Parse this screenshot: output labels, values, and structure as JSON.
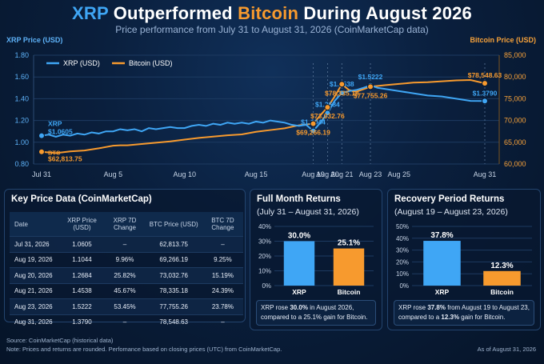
{
  "title": {
    "part1": "XRP",
    "part2": "Outperformed",
    "part3": "Bitcoin",
    "part4": "During August 2026"
  },
  "subtitle": "Price performance from July 31 to August 31, 2026 (CoinMarketCap data)",
  "colors": {
    "xrp": "#3fa6f5",
    "btc": "#f79a2e",
    "background": "#081a33"
  },
  "chart_data": [
    {
      "type": "line",
      "ylabel": "XRP Price (USD)",
      "y2label": "Bitcoin Price (USD)",
      "ylim": [
        0.8,
        1.8
      ],
      "y2lim": [
        60000,
        85000
      ],
      "yticks": [
        "0.80",
        "1.00",
        "1.20",
        "1.40",
        "1.60",
        "1.80"
      ],
      "y2ticks": [
        "60,000",
        "65,000",
        "70,000",
        "75,000",
        "80,000",
        "85,000"
      ],
      "x_ticks": [
        {
          "day": 0,
          "label": "Jul 31"
        },
        {
          "day": 5,
          "label": "Aug 5"
        },
        {
          "day": 10,
          "label": "Aug 10"
        },
        {
          "day": 15,
          "label": "Aug 15"
        },
        {
          "day": 19,
          "label": "Aug 19"
        },
        {
          "day": 20,
          "label": "Aug 20"
        },
        {
          "day": 21,
          "label": "Aug 21"
        },
        {
          "day": 23,
          "label": "Aug 23"
        },
        {
          "day": 25,
          "label": "Aug 25"
        },
        {
          "day": 31,
          "label": "Aug 31"
        }
      ],
      "legend": "top-left",
      "series": [
        {
          "name": "XRP (USD)",
          "axis": "left",
          "points": [
            [
              0,
              1.0605
            ],
            [
              0.5,
              1.07
            ],
            [
              1,
              1.05
            ],
            [
              1.5,
              1.07
            ],
            [
              2,
              1.06
            ],
            [
              2.5,
              1.08
            ],
            [
              3,
              1.07
            ],
            [
              3.5,
              1.09
            ],
            [
              4,
              1.08
            ],
            [
              4.5,
              1.1
            ],
            [
              5,
              1.1
            ],
            [
              5.5,
              1.12
            ],
            [
              6,
              1.11
            ],
            [
              6.5,
              1.12
            ],
            [
              7,
              1.1
            ],
            [
              7.5,
              1.13
            ],
            [
              8,
              1.12
            ],
            [
              8.5,
              1.13
            ],
            [
              9,
              1.14
            ],
            [
              9.5,
              1.13
            ],
            [
              10,
              1.13
            ],
            [
              10.5,
              1.15
            ],
            [
              11,
              1.16
            ],
            [
              11.5,
              1.15
            ],
            [
              12,
              1.17
            ],
            [
              12.5,
              1.16
            ],
            [
              13,
              1.18
            ],
            [
              13.5,
              1.17
            ],
            [
              14,
              1.18
            ],
            [
              14.5,
              1.17
            ],
            [
              15,
              1.19
            ],
            [
              15.5,
              1.18
            ],
            [
              16,
              1.2
            ],
            [
              16.5,
              1.19
            ],
            [
              17,
              1.18
            ],
            [
              17.5,
              1.16
            ],
            [
              18,
              1.15
            ],
            [
              18.5,
              1.16
            ],
            [
              19,
              1.1044
            ],
            [
              19.5,
              1.18
            ],
            [
              20,
              1.2684
            ],
            [
              20.5,
              1.38
            ],
            [
              21,
              1.4538
            ],
            [
              21.5,
              1.47
            ],
            [
              22,
              1.48
            ],
            [
              22.5,
              1.5
            ],
            [
              23,
              1.5222
            ],
            [
              23.5,
              1.5
            ],
            [
              24,
              1.49
            ],
            [
              25,
              1.47
            ],
            [
              26,
              1.45
            ],
            [
              27,
              1.43
            ],
            [
              28,
              1.42
            ],
            [
              29,
              1.4
            ],
            [
              30,
              1.38
            ],
            [
              31,
              1.379
            ]
          ]
        },
        {
          "name": "Bitcoin (USD)",
          "axis": "right",
          "points": [
            [
              0,
              62813.75
            ],
            [
              1,
              62500
            ],
            [
              2,
              62900
            ],
            [
              3,
              63100
            ],
            [
              4,
              63600
            ],
            [
              5,
              64200
            ],
            [
              5.5,
              64300
            ],
            [
              6,
              64300
            ],
            [
              7,
              64600
            ],
            [
              8,
              64900
            ],
            [
              9,
              65200
            ],
            [
              10,
              65600
            ],
            [
              11,
              66000
            ],
            [
              12,
              66300
            ],
            [
              13,
              66600
            ],
            [
              14,
              66800
            ],
            [
              15,
              67400
            ],
            [
              16,
              67800
            ],
            [
              17,
              68200
            ],
            [
              18,
              68900
            ],
            [
              19,
              69266.19
            ],
            [
              19.5,
              71200
            ],
            [
              20,
              73032.76
            ],
            [
              20.5,
              75500
            ],
            [
              21,
              78335.18
            ],
            [
              21.5,
              77000
            ],
            [
              22,
              76600
            ],
            [
              23,
              77755.26
            ],
            [
              24,
              78100
            ],
            [
              25,
              78400
            ],
            [
              26,
              78700
            ],
            [
              27,
              78800
            ],
            [
              28,
              79000
            ],
            [
              29,
              79200
            ],
            [
              30,
              79300
            ],
            [
              31,
              78548.63
            ]
          ]
        }
      ],
      "annotations": [
        {
          "series": "xrp",
          "day": 0,
          "value": 1.0605,
          "label": "$1.0605",
          "name": "XRP"
        },
        {
          "series": "xrp",
          "day": 19,
          "value": 1.1044,
          "label": "$1.1044"
        },
        {
          "series": "xrp",
          "day": 20,
          "value": 1.2684,
          "label": "$1.2684"
        },
        {
          "series": "xrp",
          "day": 21,
          "value": 1.4538,
          "label": "$1.4538"
        },
        {
          "series": "xrp",
          "day": 23,
          "value": 1.5222,
          "label": "$1.5222"
        },
        {
          "series": "xrp",
          "day": 31,
          "value": 1.379,
          "label": "$1.3790"
        },
        {
          "series": "btc",
          "day": 0,
          "value": 62813.75,
          "label": "$62,813.75",
          "name": "BTC"
        },
        {
          "series": "btc",
          "day": 19,
          "value": 69266.19,
          "label": "$69,266.19"
        },
        {
          "series": "btc",
          "day": 20,
          "value": 73032.76,
          "label": "$73,032.76"
        },
        {
          "series": "btc",
          "day": 21,
          "value": 78335.18,
          "label": "$78,335.18"
        },
        {
          "series": "btc",
          "day": 23,
          "value": 77755.26,
          "label": "$77,755.26"
        },
        {
          "series": "btc",
          "day": 31,
          "value": 78548.63,
          "label": "$78,548.63"
        }
      ]
    },
    {
      "type": "bar",
      "title": "Full Month Returns",
      "subtitle": "(July 31 – August 31, 2026)",
      "categories": [
        "XRP",
        "Bitcoin"
      ],
      "values": [
        30.0,
        25.1
      ],
      "labels": [
        "30.0%",
        "25.1%"
      ],
      "ylim": [
        0,
        40
      ],
      "yticks": [
        "0%",
        "10%",
        "20%",
        "30%",
        "40%"
      ]
    },
    {
      "type": "bar",
      "title": "Recovery Period Returns",
      "subtitle": "(August 19 – August 23, 2026)",
      "categories": [
        "XRP",
        "Bitcoin"
      ],
      "values": [
        37.8,
        12.3
      ],
      "labels": [
        "37.8%",
        "12.3%"
      ],
      "ylim": [
        0,
        50
      ],
      "yticks": [
        "0%",
        "10%",
        "20%",
        "30%",
        "40%",
        "50%"
      ]
    }
  ],
  "table": {
    "title": "Key Price Data (CoinMarketCap)",
    "headers": [
      "Date",
      "XRP Price (USD)",
      "XRP 7D Change",
      "BTC Price (USD)",
      "BTC 7D Change"
    ],
    "rows": [
      [
        "Jul 31, 2026",
        "1.0605",
        "–",
        "62,813.75",
        "–"
      ],
      [
        "Aug 19, 2026",
        "1.1044",
        "9.96%",
        "69,266.19",
        "9.25%"
      ],
      [
        "Aug 20, 2026",
        "1.2684",
        "25.82%",
        "73,032.76",
        "15.19%"
      ],
      [
        "Aug 21, 2026",
        "1.4538",
        "45.67%",
        "78,335.18",
        "24.39%"
      ],
      [
        "Aug 23, 2026",
        "1.5222",
        "53.45%",
        "77,755.26",
        "23.78%"
      ],
      [
        "Aug 31, 2026",
        "1.3790",
        "–",
        "78,548.63",
        "–"
      ]
    ]
  },
  "captions": {
    "full": {
      "a": "XRP rose ",
      "b": "30.0%",
      "c": " in August 2026,",
      "d": "compared to a 25.1% gain for Bitcoin."
    },
    "recovery": {
      "a": "XRP rose ",
      "b": "37.8%",
      "c": " from August 19 to August 23,",
      "d": "compared to a ",
      "e": "12.3%",
      "f": " gain for Bitcoin."
    }
  },
  "footer": {
    "source": "Source: CoinMarketCap (historical data)",
    "note": "Note: Prices and returns are rounded. Perfomance based on closing prices (UTC) from CoinMarketCap.",
    "asof": "As of August 31, 2026"
  }
}
